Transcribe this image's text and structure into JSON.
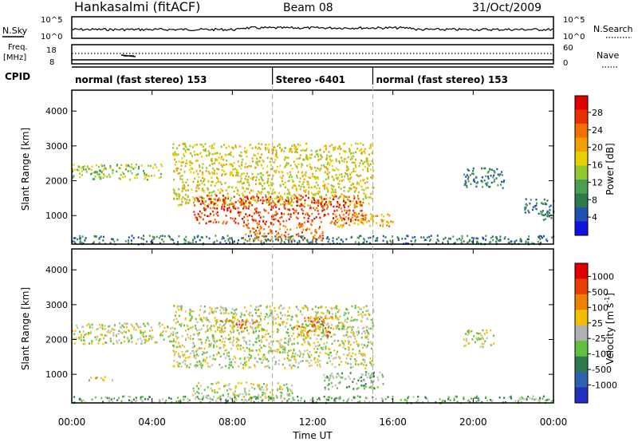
{
  "header": {
    "title": "Hankasalmi (fitACF)",
    "beam": "Beam 08",
    "date": "31/Oct/2009"
  },
  "top_panels": {
    "nsky_label": "N.Sky",
    "nsky_ticks": [
      "10^5",
      "10^0"
    ],
    "nsearch_label": "N.Search",
    "nsearch_ticks": [
      "10^5",
      "10^0"
    ],
    "freq_label": "Freq.",
    "freq_unit": "[MHz]",
    "freq_ticks": [
      "18",
      "8"
    ],
    "nave_label": "Nave",
    "nave_ticks": [
      "60",
      "0"
    ],
    "cpid_label": "CPID",
    "cpid_segments": [
      {
        "label": "normal (fast stereo) 153",
        "start_h": 0,
        "end_h": 10
      },
      {
        "label": "Stereo -6401",
        "start_h": 10,
        "end_h": 15
      },
      {
        "label": "normal (fast stereo) 153",
        "start_h": 15,
        "end_h": 24
      }
    ]
  },
  "chart_data": [
    {
      "type": "heatmap",
      "name": "power",
      "ylabel": "Slant Range [km]",
      "xlabel": "Time UT",
      "x_ticks": [
        "00:00",
        "04:00",
        "08:00",
        "12:00",
        "16:00",
        "20:00",
        "00:00"
      ],
      "xlim_hours": [
        0,
        24
      ],
      "y_ticks": [
        1000,
        2000,
        3000,
        4000
      ],
      "ylim_km": [
        180,
        4600
      ],
      "colorbar_label": "Power [dB]",
      "colorbar_ticks": [
        4,
        8,
        12,
        16,
        20,
        24,
        28
      ],
      "colorbar_colors": [
        "#1010e0",
        "#2050b0",
        "#2e7a4a",
        "#4aa050",
        "#90c830",
        "#e8d000",
        "#f0a000",
        "#f07000",
        "#e83000",
        "#e00000"
      ],
      "echo_regions": [
        {
          "t0": 0.0,
          "t1": 4.5,
          "r0": 2050,
          "r1": 2500,
          "level": 4
        },
        {
          "t0": 5.0,
          "t1": 15.0,
          "r0": 1300,
          "r1": 3100,
          "level": 5
        },
        {
          "t0": 6.0,
          "t1": 14.5,
          "r0": 800,
          "r1": 1600,
          "level": 8
        },
        {
          "t0": 8.5,
          "t1": 12.5,
          "r0": 300,
          "r1": 800,
          "level": 7
        },
        {
          "t0": 13.0,
          "t1": 16.0,
          "r0": 700,
          "r1": 1100,
          "level": 6
        },
        {
          "t0": 19.5,
          "t1": 21.5,
          "r0": 1800,
          "r1": 2400,
          "level": 2
        },
        {
          "t0": 22.5,
          "t1": 24.0,
          "r0": 900,
          "r1": 1500,
          "level": 2
        },
        {
          "t0": 0.0,
          "t1": 24.0,
          "r0": 200,
          "r1": 450,
          "level": 2
        }
      ]
    },
    {
      "type": "heatmap",
      "name": "velocity",
      "ylabel": "Slant Range [km]",
      "xlabel": "Time UT",
      "x_ticks": [
        "00:00",
        "04:00",
        "08:00",
        "12:00",
        "16:00",
        "20:00",
        "00:00"
      ],
      "xlim_hours": [
        0,
        24
      ],
      "y_ticks": [
        1000,
        2000,
        3000,
        4000
      ],
      "ylim_km": [
        180,
        4600
      ],
      "colorbar_label": "Velocity [m s",
      "colorbar_label_sup": "-1",
      "colorbar_label_tail": "]",
      "colorbar_ticks": [
        "1000",
        "500",
        "100",
        "25",
        "-25",
        "-100",
        "-500",
        "-1000"
      ],
      "colorbar_colors": [
        "#2030c0",
        "#3060b0",
        "#2e7a4a",
        "#60c040",
        "#b0b0b0",
        "#f0c000",
        "#f08000",
        "#e84000",
        "#e00000"
      ],
      "ground_scatter_color": "#c0c0b8",
      "echo_regions": [
        {
          "t0": 0.0,
          "t1": 5.0,
          "r0": 1900,
          "r1": 2500,
          "level": 4
        },
        {
          "t0": 5.0,
          "t1": 15.0,
          "r0": 1200,
          "r1": 3000,
          "level": 4
        },
        {
          "t0": 7.0,
          "t1": 9.5,
          "r0": 2350,
          "r1": 2600,
          "level": 6
        },
        {
          "t0": 11.0,
          "t1": 13.0,
          "r0": 2100,
          "r1": 2700,
          "level": 6
        },
        {
          "t0": 12.5,
          "t1": 15.5,
          "r0": 600,
          "r1": 1100,
          "level": 3
        },
        {
          "t0": 0.5,
          "t1": 2.0,
          "r0": 850,
          "r1": 950,
          "level": 5
        },
        {
          "t0": 6.0,
          "t1": 11.0,
          "r0": 300,
          "r1": 800,
          "level": 4
        },
        {
          "t0": 19.5,
          "t1": 21.0,
          "r0": 1800,
          "r1": 2300,
          "level": 4
        },
        {
          "t0": 0.0,
          "t1": 24.0,
          "r0": 200,
          "r1": 400,
          "level": 3
        }
      ]
    }
  ]
}
